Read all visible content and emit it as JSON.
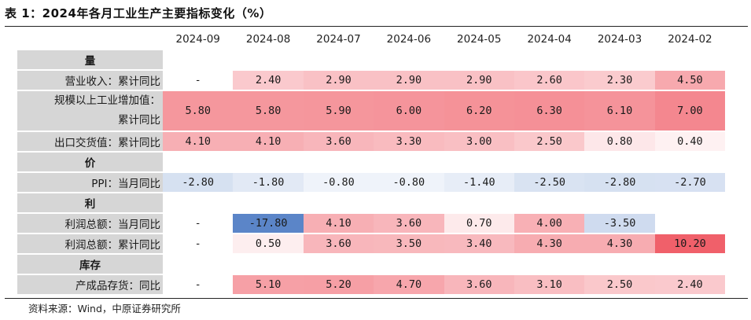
{
  "title": "表 1：2024年各月工业生产主要指标变化（%）",
  "source": "资料来源：Wind，中原证券研究所",
  "months": [
    "2024-09",
    "2024-08",
    "2024-07",
    "2024-06",
    "2024-05",
    "2024-04",
    "2024-03",
    "2024-02"
  ],
  "rows": [
    {
      "type": "section",
      "label": "量"
    },
    {
      "type": "data",
      "label": "营业收入：累计同比",
      "values": [
        "-",
        "2.40",
        "2.90",
        "2.90",
        "2.90",
        "2.60",
        "2.30",
        "4.50"
      ]
    },
    {
      "type": "data",
      "label": "规模以上工业增加值：累计同比",
      "label_line1": "规模以上工业增加值：",
      "label_line2": "累计同比",
      "tall": true,
      "values": [
        "5.80",
        "5.80",
        "5.90",
        "6.00",
        "6.20",
        "6.30",
        "6.10",
        "7.00"
      ]
    },
    {
      "type": "data",
      "label": "出口交货值：累计同比",
      "values": [
        "4.10",
        "4.10",
        "3.60",
        "3.30",
        "3.00",
        "2.50",
        "0.80",
        "0.40"
      ]
    },
    {
      "type": "section",
      "label": "价"
    },
    {
      "type": "data",
      "label": "PPI：当月同比",
      "values": [
        "-2.80",
        "-1.80",
        "-0.80",
        "-0.80",
        "-1.40",
        "-2.50",
        "-2.80",
        "-2.70"
      ]
    },
    {
      "type": "section",
      "label": "利"
    },
    {
      "type": "data",
      "label": "利润总额：当月同比",
      "values": [
        "-",
        "-17.80",
        "4.10",
        "3.60",
        "0.70",
        "4.00",
        "-3.50",
        ""
      ]
    },
    {
      "type": "data",
      "label": "利润总额：累计同比",
      "values": [
        "-",
        "0.50",
        "3.60",
        "3.50",
        "3.40",
        "4.30",
        "4.30",
        "10.20"
      ]
    },
    {
      "type": "section",
      "label": "库存"
    },
    {
      "type": "data",
      "label": "产成品存货：同比",
      "values": [
        "-",
        "5.10",
        "5.20",
        "4.70",
        "3.60",
        "3.10",
        "2.50",
        "2.40"
      ]
    }
  ],
  "colors": {
    "positive_max": "#f0606a",
    "negative_max": "#5b85c8",
    "neutral": "#ffffff",
    "label_bg": "#d6d6d6"
  }
}
